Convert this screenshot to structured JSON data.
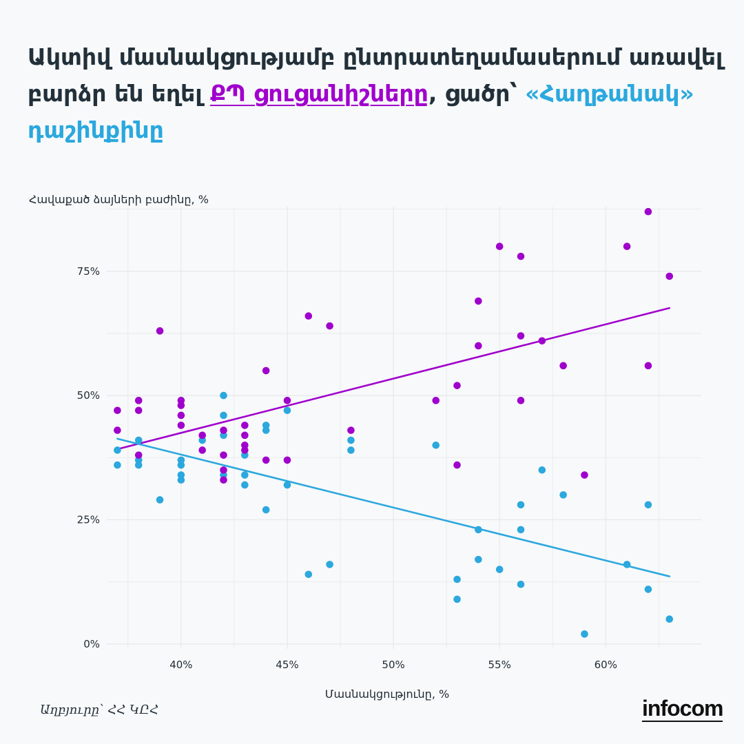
{
  "title": {
    "part1": "Ակտիվ մասնակցությամբ ընտրատեղամասերում առավել բարձր են եղել ",
    "highlight1": "ՔՊ ցուցանիշները",
    "part2": ", ցածր՝ ",
    "highlight2": "«Հաղթանակ» դաշինքինը"
  },
  "source": "Աղբյուրը՝ ՀՀ ԿԸՀ",
  "logo": "infocom",
  "colors": {
    "purple": "#a000cc",
    "blue": "#2ba8de",
    "grid": "#e6e8ea"
  },
  "chart_data": {
    "type": "scatter",
    "xlabel": "Մասնակցությունը, %",
    "ylabel": "Հավաքած ձայների բաժինը, %",
    "xlim": [
      36.5,
      64.5
    ],
    "ylim": [
      -1,
      88
    ],
    "x_ticks": [
      40,
      45,
      50,
      55,
      60
    ],
    "x_tick_labels": [
      "40%",
      "45%",
      "50%",
      "55%",
      "60%"
    ],
    "y_ticks": [
      0,
      25,
      50,
      75
    ],
    "y_tick_labels": [
      "0%",
      "25%",
      "50%",
      "75%"
    ],
    "series": [
      {
        "name": "ՔՊ",
        "color": "#a000cc",
        "points": [
          [
            37,
            47
          ],
          [
            37,
            43
          ],
          [
            38,
            49
          ],
          [
            38,
            47
          ],
          [
            38,
            38
          ],
          [
            39,
            63
          ],
          [
            40,
            49
          ],
          [
            40,
            48
          ],
          [
            40,
            46
          ],
          [
            40,
            44
          ],
          [
            41,
            42
          ],
          [
            41,
            39
          ],
          [
            42,
            43
          ],
          [
            42,
            38
          ],
          [
            42,
            35
          ],
          [
            42,
            33
          ],
          [
            43,
            44
          ],
          [
            43,
            42
          ],
          [
            43,
            40
          ],
          [
            43,
            39
          ],
          [
            44,
            55
          ],
          [
            44,
            37
          ],
          [
            45,
            49
          ],
          [
            45,
            37
          ],
          [
            46,
            66
          ],
          [
            47,
            64
          ],
          [
            48,
            43
          ],
          [
            52,
            49
          ],
          [
            53,
            52
          ],
          [
            53,
            36
          ],
          [
            54,
            69
          ],
          [
            54,
            60
          ],
          [
            55,
            80
          ],
          [
            56,
            78
          ],
          [
            56,
            62
          ],
          [
            56,
            49
          ],
          [
            57,
            61
          ],
          [
            58,
            56
          ],
          [
            59,
            34
          ],
          [
            61,
            80
          ],
          [
            62,
            87
          ],
          [
            62,
            56
          ],
          [
            63,
            74
          ]
        ],
        "trend": [
          [
            37,
            39.2
          ],
          [
            63,
            67.6
          ]
        ]
      },
      {
        "name": "«Հաղթանակ» դաշինք",
        "color": "#2ba8de",
        "points": [
          [
            37,
            39
          ],
          [
            37,
            36
          ],
          [
            38,
            41
          ],
          [
            38,
            37
          ],
          [
            38,
            36
          ],
          [
            39,
            29
          ],
          [
            40,
            37
          ],
          [
            40,
            36
          ],
          [
            40,
            34
          ],
          [
            40,
            33
          ],
          [
            41,
            41
          ],
          [
            42,
            50
          ],
          [
            42,
            46
          ],
          [
            42,
            42
          ],
          [
            42,
            34
          ],
          [
            43,
            38
          ],
          [
            43,
            34
          ],
          [
            43,
            32
          ],
          [
            44,
            44
          ],
          [
            44,
            43
          ],
          [
            44,
            27
          ],
          [
            45,
            47
          ],
          [
            45,
            32
          ],
          [
            46,
            14
          ],
          [
            47,
            16
          ],
          [
            48,
            41
          ],
          [
            48,
            39
          ],
          [
            52,
            40
          ],
          [
            53,
            13
          ],
          [
            53,
            9
          ],
          [
            54,
            23
          ],
          [
            54,
            17
          ],
          [
            55,
            15
          ],
          [
            56,
            28
          ],
          [
            56,
            23
          ],
          [
            56,
            12
          ],
          [
            57,
            35
          ],
          [
            58,
            30
          ],
          [
            59,
            2
          ],
          [
            61,
            16
          ],
          [
            62,
            28
          ],
          [
            62,
            11
          ],
          [
            63,
            5
          ]
        ],
        "trend": [
          [
            37,
            41.3
          ],
          [
            63,
            13.6
          ]
        ]
      }
    ]
  }
}
